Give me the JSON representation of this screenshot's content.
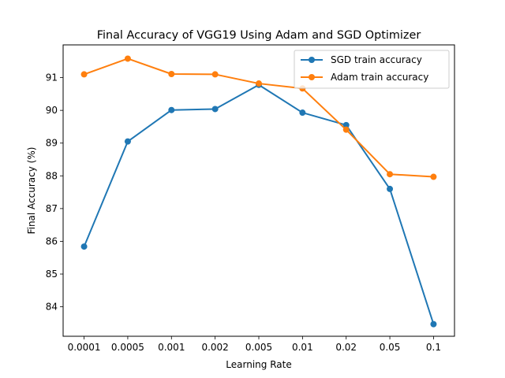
{
  "chart_data": {
    "type": "line",
    "title": "Final Accuracy of VGG19 Using Adam and SGD Optimizer",
    "xlabel": "Learning Rate",
    "ylabel": "Final Accuracy (%)",
    "categories": [
      "0.0001",
      "0.0005",
      "0.001",
      "0.002",
      "0.005",
      "0.01",
      "0.02",
      "0.05",
      "0.1"
    ],
    "ylim": [
      83.1,
      92.0
    ],
    "yticks": [
      "84",
      "85",
      "86",
      "87",
      "88",
      "89",
      "90",
      "91"
    ],
    "grid": false,
    "legend_position": "top-right",
    "series": [
      {
        "name": "SGD train accuracy",
        "color": "#1f77b4",
        "values": [
          85.84,
          89.05,
          90.01,
          90.04,
          90.78,
          89.93,
          89.55,
          87.6,
          83.47
        ]
      },
      {
        "name": "Adam train accuracy",
        "color": "#ff7f0e",
        "values": [
          91.1,
          91.58,
          91.11,
          91.1,
          90.82,
          90.67,
          89.41,
          88.05,
          87.97
        ]
      }
    ]
  }
}
